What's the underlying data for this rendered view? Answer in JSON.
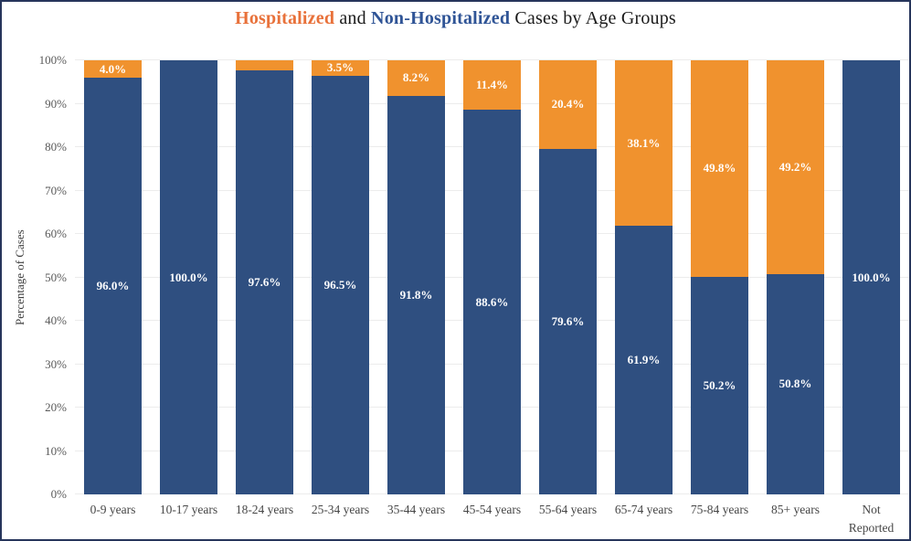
{
  "title": {
    "part1": "Hospitalized",
    "part2": " and ",
    "part3": "Non-Hospitalized",
    "part4": " Cases by Age Groups"
  },
  "colors": {
    "title_orange": "#E8713A",
    "title_blue": "#2F5496",
    "hospitalized": "#F0922E",
    "non_hospitalized": "#2F4F80",
    "grid": "#ECECEC",
    "tick_text": "#595959",
    "border": "#26355B",
    "value_label": "#FFFFFF"
  },
  "y_axis": {
    "label": "Percentage of Cases",
    "ticks": [
      "0%",
      "10%",
      "20%",
      "30%",
      "40%",
      "50%",
      "60%",
      "70%",
      "80%",
      "90%",
      "100%"
    ]
  },
  "chart_data": {
    "type": "bar",
    "stacked": true,
    "title": "Hospitalized and Non-Hospitalized Cases by Age Groups",
    "xlabel": "",
    "ylabel": "Percentage of Cases",
    "ylim": [
      0,
      100
    ],
    "grid": true,
    "legend_position": "in-title",
    "categories": [
      "0-9 years",
      "10-17 years",
      "18-24 years",
      "25-34 years",
      "35-44 years",
      "45-54 years",
      "55-64 years",
      "65-74 years",
      "75-84 years",
      "85+ years",
      "Not\nReported"
    ],
    "series": [
      {
        "name": "Non-Hospitalized",
        "color": "#2F4F80",
        "values": [
          96.0,
          100.0,
          97.6,
          96.5,
          91.8,
          88.6,
          79.6,
          61.9,
          50.2,
          50.8,
          100.0
        ],
        "labels": [
          "96.0%",
          "100.0%",
          "97.6%",
          "96.5%",
          "91.8%",
          "88.6%",
          "79.6%",
          "61.9%",
          "50.2%",
          "50.8%",
          "100.0%"
        ]
      },
      {
        "name": "Hospitalized",
        "color": "#F0922E",
        "values": [
          4.0,
          0.0,
          2.4,
          3.5,
          8.2,
          11.4,
          20.4,
          38.1,
          49.8,
          49.2,
          0.0
        ],
        "labels": [
          "4.0%",
          "",
          "",
          "3.5%",
          "8.2%",
          "11.4%",
          "20.4%",
          "38.1%",
          "49.8%",
          "49.2%",
          ""
        ]
      }
    ]
  }
}
